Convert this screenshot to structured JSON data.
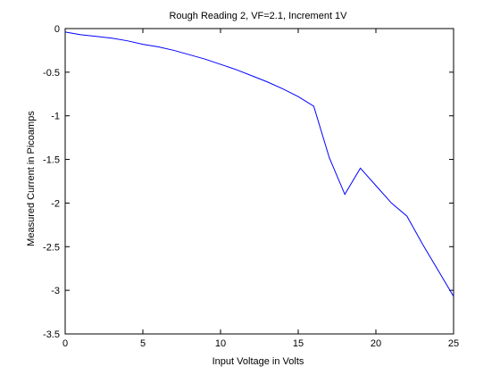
{
  "chart_data": {
    "type": "line",
    "title": "Rough Reading 2, VF=2.1, Increment 1V",
    "xlabel": "Input Voltage in Volts",
    "ylabel": "Measured Current in Picoamps",
    "xlim": [
      0,
      25
    ],
    "ylim": [
      -3.5,
      0
    ],
    "xticks": [
      0,
      5,
      10,
      15,
      20,
      25
    ],
    "xtick_labels": [
      "0",
      "5",
      "10",
      "15",
      "20",
      "25"
    ],
    "yticks": [
      0,
      -0.5,
      -1,
      -1.5,
      -2,
      -2.5,
      -3,
      -3.5
    ],
    "ytick_labels": [
      "0",
      "-0.5",
      "-1",
      "-1.5",
      "-2",
      "-2.5",
      "-3",
      "-3.5"
    ],
    "grid": false,
    "legend": "none",
    "series_color": "#0000ff",
    "series": [
      {
        "x": [
          0,
          1,
          2,
          3,
          4,
          5,
          6,
          7,
          8,
          9,
          10,
          11,
          12,
          13,
          14,
          15,
          16,
          17,
          18,
          19,
          20,
          21,
          22,
          23,
          24,
          25
        ],
        "values": [
          -0.04,
          -0.07,
          -0.09,
          -0.11,
          -0.14,
          -0.18,
          -0.21,
          -0.25,
          -0.3,
          -0.35,
          -0.41,
          -0.47,
          -0.54,
          -0.61,
          -0.69,
          -0.78,
          -0.89,
          -1.48,
          -1.9,
          -1.6,
          -1.8,
          -2.0,
          -2.15,
          -2.47,
          -2.77,
          -3.07
        ]
      }
    ]
  }
}
